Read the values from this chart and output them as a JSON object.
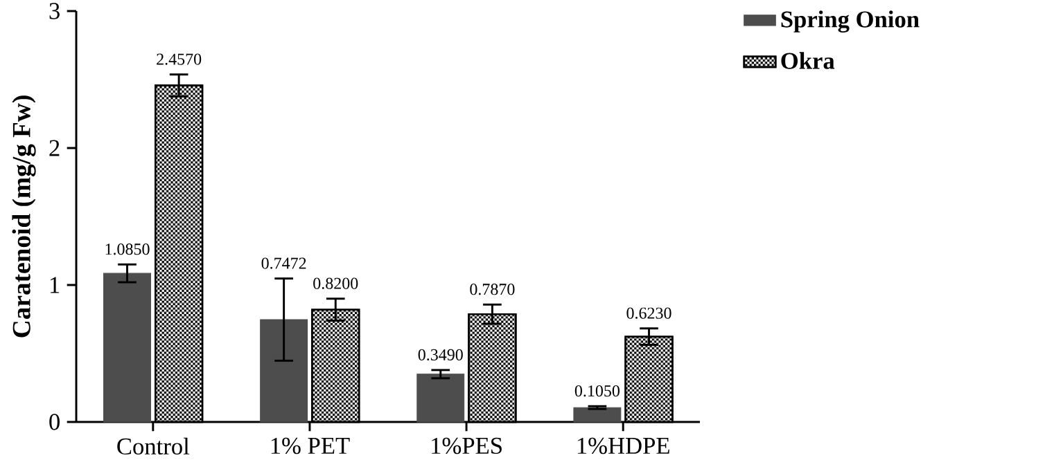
{
  "chart_data": {
    "type": "bar",
    "ylabel": "Caratenoid (mg/g Fw)",
    "categories": [
      "Control",
      "1% PET",
      "1%PES",
      "1%HDPE"
    ],
    "series": [
      {
        "name": "Spring Onion",
        "color": "#4d4d4d",
        "values": [
          1.085,
          0.7472,
          0.349,
          0.105
        ],
        "errors": [
          0.065,
          0.3,
          0.03,
          0.01
        ],
        "value_labels": [
          "1.0850",
          "0.7472",
          "0.3490",
          "0.1050"
        ]
      },
      {
        "name": "Okra",
        "color": "#000000",
        "values": [
          2.457,
          0.82,
          0.787,
          0.623
        ],
        "errors": [
          0.08,
          0.08,
          0.07,
          0.06
        ],
        "value_labels": [
          "2.4570",
          "0.8200",
          "0.7870",
          "0.6230"
        ]
      }
    ],
    "ylim": [
      0,
      3
    ],
    "yticks": [
      0,
      1,
      2,
      3
    ],
    "legend": "top right"
  }
}
